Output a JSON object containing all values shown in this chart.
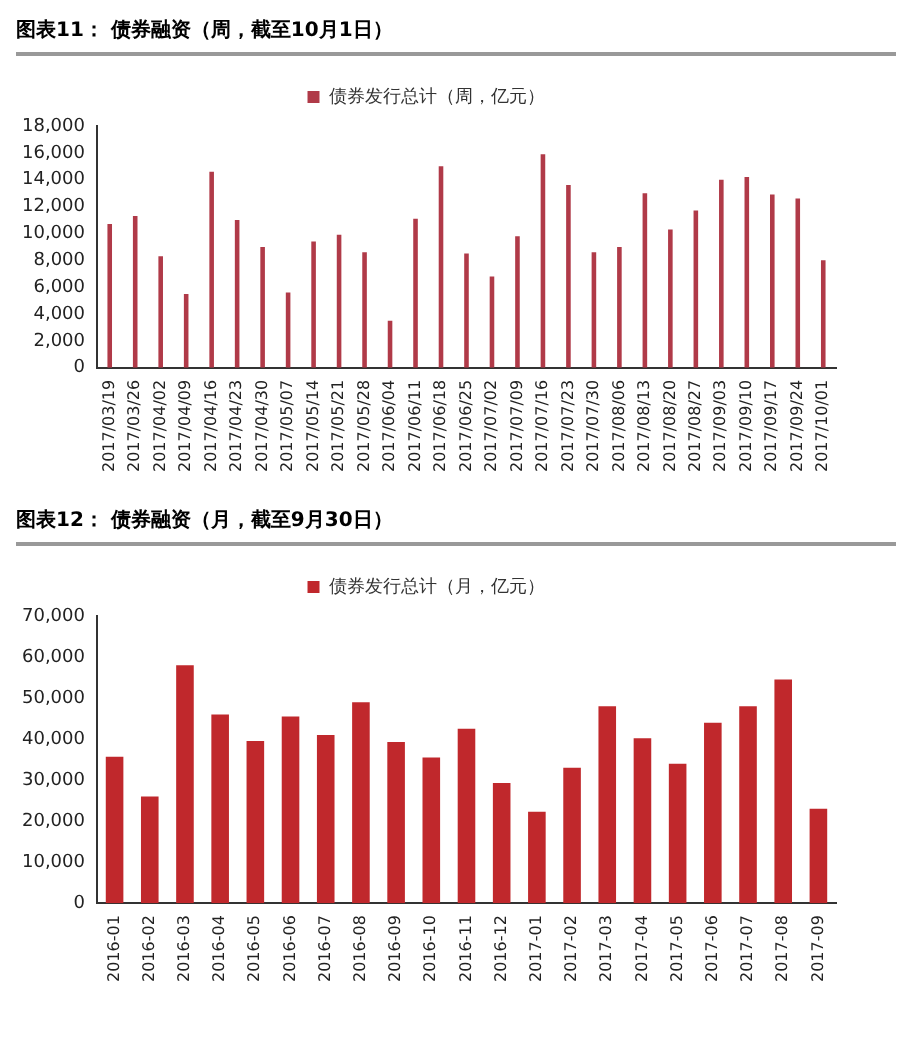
{
  "chart_data": [
    {
      "type": "bar",
      "title": "图表11： 债券融资（周，截至10月1日）",
      "categories": [
        "2017/03/19",
        "2017/03/26",
        "2017/04/02",
        "2017/04/09",
        "2017/04/16",
        "2017/04/23",
        "2017/04/30",
        "2017/05/07",
        "2017/05/14",
        "2017/05/21",
        "2017/05/28",
        "2017/06/04",
        "2017/06/11",
        "2017/06/18",
        "2017/06/25",
        "2017/07/02",
        "2017/07/09",
        "2017/07/16",
        "2017/07/23",
        "2017/07/30",
        "2017/08/06",
        "2017/08/13",
        "2017/08/20",
        "2017/08/27",
        "2017/09/03",
        "2017/09/10",
        "2017/09/17",
        "2017/09/24",
        "2017/10/01"
      ],
      "series": [
        {
          "name": "债券发行总计（周，亿元）",
          "color": "#b03a48",
          "values": [
            10700,
            11300,
            8300,
            5500,
            14600,
            11000,
            9000,
            5600,
            9400,
            9900,
            8600,
            3500,
            11100,
            15000,
            8500,
            6800,
            9800,
            15900,
            13600,
            8600,
            9000,
            13000,
            10300,
            11700,
            14000,
            14200,
            12900,
            12600,
            8000
          ]
        }
      ],
      "ylim": [
        0,
        18000
      ],
      "yticks": [
        0,
        {
          "value": 2000,
          "label": "2,000"
        },
        {
          "value": 4000,
          "label": "4,000"
        },
        {
          "value": 6000,
          "label": "6,000"
        },
        {
          "value": 8000,
          "label": "8,000"
        },
        {
          "value": 10000,
          "label": "10,000"
        },
        {
          "value": 12000,
          "label": "12,000"
        },
        {
          "value": 14000,
          "label": "14,000"
        },
        {
          "value": 16000,
          "label": "16,000"
        },
        {
          "value": 18000,
          "label": "18,000"
        }
      ],
      "legend": "top"
    },
    {
      "type": "bar",
      "title": "图表12： 债券融资（月，截至9月30日）",
      "categories": [
        "2016-01",
        "2016-02",
        "2016-03",
        "2016-04",
        "2016-05",
        "2016-06",
        "2016-07",
        "2016-08",
        "2016-09",
        "2016-10",
        "2016-11",
        "2016-12",
        "2017-01",
        "2017-02",
        "2017-03",
        "2017-04",
        "2017-05",
        "2017-06",
        "2017-07",
        "2017-08",
        "2017-09"
      ],
      "series": [
        {
          "name": "债券发行总计（月，亿元）",
          "color": "#c0282c",
          "values": [
            35700,
            26000,
            58000,
            46000,
            39500,
            45500,
            41000,
            49000,
            39300,
            35500,
            42500,
            29300,
            22300,
            33000,
            48000,
            40200,
            34000,
            44000,
            48000,
            54500,
            23000
          ]
        }
      ],
      "ylim": [
        0,
        70000
      ],
      "yticks": [
        0,
        {
          "value": 10000,
          "label": "10,000"
        },
        {
          "value": 20000,
          "label": "20,000"
        },
        {
          "value": 30000,
          "label": "30,000"
        },
        {
          "value": 40000,
          "label": "40,000"
        },
        {
          "value": 50000,
          "label": "50,000"
        },
        {
          "value": 60000,
          "label": "60,000"
        },
        {
          "value": 70000,
          "label": "70,000"
        }
      ],
      "legend": "top"
    }
  ]
}
